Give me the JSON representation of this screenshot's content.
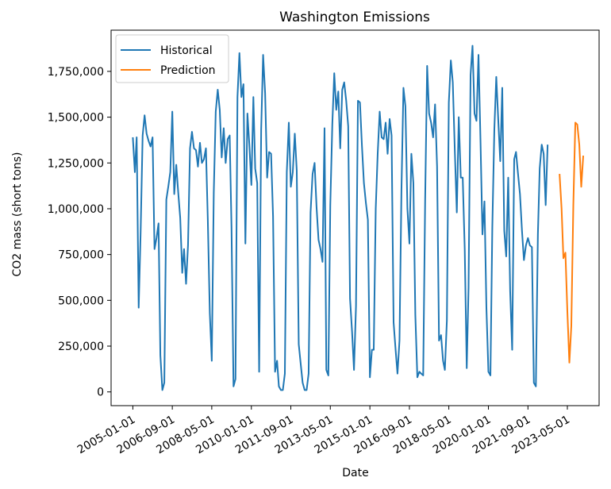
{
  "chart_data": {
    "type": "line",
    "title": "Washington Emissions",
    "xlabel": "Date",
    "ylabel": "CO2 mass (short tons)",
    "ylim": [
      -75000,
      1975000
    ],
    "xlim": [
      "2004-02-01",
      "2024-09-01"
    ],
    "x_ticks": [
      "2005-01-01",
      "2006-09-01",
      "2008-05-01",
      "2010-01-01",
      "2011-09-01",
      "2013-05-01",
      "2015-01-01",
      "2016-09-01",
      "2018-05-01",
      "2020-01-01",
      "2021-09-01",
      "2023-05-01"
    ],
    "y_ticks": [
      0,
      250000,
      500000,
      750000,
      1000000,
      1250000,
      1500000,
      1750000
    ],
    "y_tick_labels": [
      "0",
      "250,000",
      "500,000",
      "750,000",
      "1,000,000",
      "1,250,000",
      "1,500,000",
      "1,750,000"
    ],
    "grid": false,
    "legend": {
      "placement": "top-left"
    },
    "series": [
      {
        "name": "Historical",
        "color": "#1f77b4",
        "start": "2005-01-01",
        "values": [
          1390000,
          1200000,
          1390000,
          460000,
          870000,
          1400000,
          1510000,
          1410000,
          1370000,
          1340000,
          1390000,
          780000,
          840000,
          920000,
          200000,
          10000,
          50000,
          1050000,
          1120000,
          1200000,
          1530000,
          1080000,
          1240000,
          1090000,
          950000,
          650000,
          780000,
          590000,
          800000,
          1330000,
          1420000,
          1330000,
          1320000,
          1230000,
          1360000,
          1250000,
          1270000,
          1330000,
          940000,
          430000,
          170000,
          1090000,
          1530000,
          1650000,
          1540000,
          1280000,
          1440000,
          1250000,
          1380000,
          1400000,
          900000,
          30000,
          70000,
          1610000,
          1850000,
          1610000,
          1680000,
          810000,
          1520000,
          1350000,
          1130000,
          1610000,
          1220000,
          1140000,
          110000,
          1430000,
          1840000,
          1630000,
          1170000,
          1310000,
          1300000,
          960000,
          110000,
          170000,
          30000,
          10000,
          10000,
          100000,
          1200000,
          1470000,
          1120000,
          1200000,
          1410000,
          1210000,
          260000,
          150000,
          50000,
          10000,
          10000,
          100000,
          980000,
          1190000,
          1250000,
          1010000,
          830000,
          780000,
          710000,
          1440000,
          120000,
          90000,
          1020000,
          1460000,
          1740000,
          1540000,
          1640000,
          1330000,
          1650000,
          1690000,
          1590000,
          1450000,
          510000,
          330000,
          120000,
          470000,
          1590000,
          1580000,
          1340000,
          1140000,
          1030000,
          940000,
          80000,
          230000,
          230000,
          1000000,
          1300000,
          1530000,
          1390000,
          1380000,
          1470000,
          1300000,
          1490000,
          1400000,
          380000,
          230000,
          100000,
          280000,
          1100000,
          1660000,
          1560000,
          1000000,
          810000,
          1300000,
          1140000,
          420000,
          80000,
          110000,
          100000,
          90000,
          1040000,
          1780000,
          1520000,
          1470000,
          1390000,
          1570000,
          1230000,
          280000,
          310000,
          170000,
          120000,
          390000,
          1580000,
          1810000,
          1690000,
          1320000,
          980000,
          1500000,
          1170000,
          1170000,
          780000,
          130000,
          570000,
          1730000,
          1890000,
          1520000,
          1480000,
          1840000,
          1370000,
          860000,
          1040000,
          460000,
          110000,
          90000,
          900000,
          1430000,
          1720000,
          1480000,
          1260000,
          1660000,
          880000,
          740000,
          1170000,
          550000,
          230000,
          1270000,
          1310000,
          1190000,
          1080000,
          880000,
          720000,
          800000,
          840000,
          800000,
          790000,
          50000,
          30000,
          860000,
          1220000,
          1350000,
          1300000,
          1020000,
          1350000
        ]
      },
      {
        "name": "Prediction",
        "color": "#ff7f0e",
        "start": "2023-01-01",
        "values": [
          1190000,
          1000000,
          730000,
          760000,
          440000,
          160000,
          360000,
          1020000,
          1470000,
          1460000,
          1350000,
          1120000,
          1290000
        ]
      }
    ]
  }
}
